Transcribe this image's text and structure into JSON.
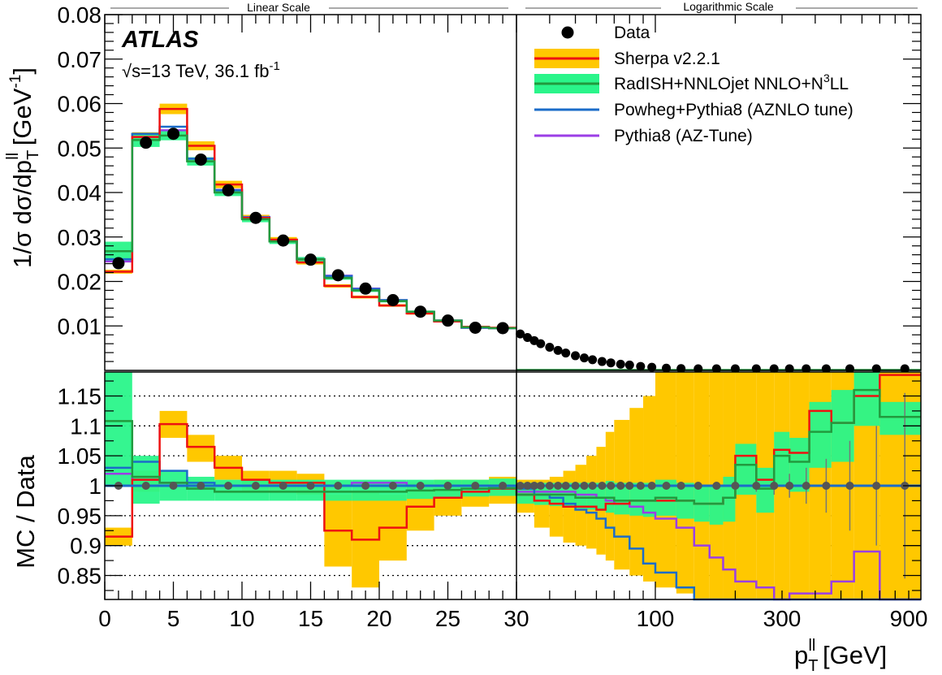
{
  "chart_data": {
    "type": "line",
    "experiment": "ATLAS",
    "energy_label": "√s=13 TeV, 36.1 fb",
    "lumi_exp": "-1",
    "scale_labels": {
      "linear": "Linear Scale",
      "log": "Logarithmic Scale"
    },
    "xlabel": {
      "base": "p",
      "sub": "T",
      "sup": "ll",
      "unit": " [GeV]"
    },
    "ylabel_main": {
      "base": "1/σ dσ/dp",
      "sub": "T",
      "sup": "ll",
      "unit": " [GeV",
      "unit_exp": "-1",
      "close": "]"
    },
    "ylabel_ratio": "MC / Data",
    "x_range": [
      0,
      1000
    ],
    "x_linear_range": [
      0,
      30
    ],
    "x_log_range": [
      30,
      1000
    ],
    "ylim_main": [
      0,
      0.08
    ],
    "ylim_ratio": [
      0.81,
      1.19
    ],
    "x_ticks_linear": [
      0,
      5,
      10,
      15,
      20,
      25,
      30
    ],
    "x_ticks_log": [
      100,
      300,
      900
    ],
    "x_ticks_log_text": {
      "100": "100",
      "300": "300",
      "900": "900"
    },
    "y_ticks_main": [
      0.01,
      0.02,
      0.03,
      0.04,
      0.05,
      0.06,
      0.07,
      0.08
    ],
    "y_ticks_main_text": [
      "0.01",
      "0.02",
      "0.03",
      "0.04",
      "0.05",
      "0.06",
      "0.07",
      "0.08"
    ],
    "y_ticks_ratio": [
      0.85,
      0.9,
      0.95,
      1.0,
      1.05,
      1.1,
      1.15
    ],
    "y_ticks_ratio_text": [
      "0.85",
      "0.9",
      "0.95",
      "1",
      "1.05",
      "1.1",
      "1.15"
    ],
    "legend": [
      {
        "name": "Data",
        "style": "marker"
      },
      {
        "name": "Sherpa v2.2.1",
        "style": "band",
        "band": "#ffc800",
        "line": "#ee1111"
      },
      {
        "name": "RadISH+NNLOjet NNLO+N",
        "sup": "3",
        "tail": "LL",
        "style": "band",
        "band": "#2af58a",
        "line": "#229a3e"
      },
      {
        "name": "Powheg+Pythia8 (AZNLO tune)",
        "style": "line",
        "line": "#1b6cc9"
      },
      {
        "name": "Pythia8 (AZ-Tune)",
        "style": "line",
        "line": "#9b3ee6"
      }
    ],
    "colors": {
      "sherpa_band": "#ffc800",
      "sherpa": "#ee1111",
      "radish_band": "#2af58a",
      "radish": "#229a3e",
      "powheg": "#1b6cc9",
      "pythia": "#9b3ee6",
      "data": "#000000",
      "ratio_data": "#555555"
    },
    "data": {
      "x": [
        1,
        3,
        5,
        7,
        9,
        11,
        13,
        15,
        17,
        19,
        21,
        23,
        25,
        27,
        29,
        31,
        33,
        35,
        37,
        40,
        43,
        46,
        50,
        54,
        58,
        63,
        68,
        74,
        80,
        88,
        97,
        110,
        125,
        145,
        170,
        200,
        240,
        280,
        320,
        370,
        440,
        540,
        680,
        870
      ],
      "y": [
        0.0241,
        0.0512,
        0.0532,
        0.0474,
        0.0405,
        0.0343,
        0.0292,
        0.0249,
        0.0214,
        0.0184,
        0.0158,
        0.0132,
        0.0112,
        0.0096,
        0.0095,
        0.0082,
        0.0074,
        0.0067,
        0.006,
        0.0052,
        0.0045,
        0.0039,
        0.0033,
        0.0028,
        0.0024,
        0.002,
        0.0017,
        0.0014,
        0.0012,
        0.0009,
        0.0007,
        0.0005,
        0.0004,
        0.0003,
        0.0002,
        0.00015,
        0.0001,
        8e-05,
        6e-05,
        5e-05,
        4e-05,
        3e-05,
        2e-05,
        1e-05
      ]
    },
    "mc_bin_edges": [
      0,
      2,
      4,
      6,
      8,
      10,
      12,
      14,
      16,
      18,
      20,
      22,
      24,
      26,
      28,
      30
    ],
    "mc_main": {
      "sherpa": [
        0.0222,
        0.0525,
        0.0588,
        0.0505,
        0.0418,
        0.0343,
        0.0294,
        0.0243,
        0.019,
        0.0165,
        0.0146,
        0.0128,
        0.011,
        0.0098,
        0.0096
      ],
      "radish": [
        0.0268,
        0.0518,
        0.0528,
        0.047,
        0.04,
        0.034,
        0.029,
        0.025,
        0.0208,
        0.018,
        0.0156,
        0.0132,
        0.0112,
        0.0097,
        0.0095
      ],
      "powheg": [
        0.025,
        0.0532,
        0.0548,
        0.0476,
        0.0405,
        0.0344,
        0.0293,
        0.025,
        0.0212,
        0.0183,
        0.0158,
        0.0132,
        0.0112,
        0.0096,
        0.0095
      ],
      "pythia": [
        0.0245,
        0.0525,
        0.054,
        0.0476,
        0.0406,
        0.0345,
        0.0293,
        0.025,
        0.0213,
        0.0184,
        0.0158,
        0.0132,
        0.0112,
        0.0096,
        0.0095
      ],
      "sherpa_band_rel": 0.02,
      "radish_band_rel": [
        0.08,
        0.03,
        0.02,
        0.02,
        0.02,
        0.02,
        0.02,
        0.02,
        0.02,
        0.02,
        0.02,
        0.02,
        0.02,
        0.02,
        0.02
      ]
    },
    "ratio_bin_edges": [
      0,
      2,
      4,
      6,
      8,
      10,
      12,
      14,
      16,
      18,
      20,
      22,
      24,
      26,
      28,
      30,
      35,
      40,
      45,
      50,
      55,
      60,
      65,
      70,
      80,
      90,
      100,
      120,
      140,
      160,
      180,
      200,
      240,
      280,
      320,
      380,
      460,
      560,
      700,
      1000
    ],
    "ratio": {
      "sherpa": [
        0.915,
        1.01,
        1.103,
        1.065,
        1.03,
        1.01,
        1.005,
        1.005,
        0.925,
        0.91,
        0.93,
        0.965,
        0.98,
        0.99,
        0.995,
        0.985,
        0.975,
        0.97,
        0.965,
        0.965,
        0.965,
        0.96,
        0.97,
        0.97,
        0.975,
        0.975,
        0.975,
        0.975,
        0.97,
        0.97,
        0.98,
        1.05,
        1.01,
        1.06,
        1.055,
        1.125,
        1.105,
        1.15,
        1.185
      ],
      "sherpa_lo": [
        0.9,
        0.99,
        1.08,
        1.04,
        1.01,
        0.99,
        0.99,
        0.985,
        0.865,
        0.83,
        0.875,
        0.925,
        0.95,
        0.965,
        0.97,
        0.955,
        0.93,
        0.915,
        0.905,
        0.9,
        0.895,
        0.885,
        0.875,
        0.86,
        0.85,
        0.84,
        0.83,
        0.82,
        0.81,
        0.81,
        0.81,
        0.81,
        0.81,
        0.81,
        0.81,
        0.81,
        0.81,
        0.81,
        0.81
      ],
      "sherpa_hi": [
        0.93,
        1.025,
        1.125,
        1.085,
        1.05,
        1.025,
        1.025,
        1.02,
        0.985,
        0.99,
        0.985,
        1.005,
        1.01,
        1.01,
        1.015,
        1.01,
        1.01,
        1.015,
        1.025,
        1.035,
        1.05,
        1.065,
        1.09,
        1.11,
        1.13,
        1.15,
        1.19,
        1.19,
        1.19,
        1.19,
        1.19,
        1.19,
        1.19,
        1.19,
        1.19,
        1.19,
        1.19,
        1.19,
        1.19
      ],
      "radish": [
        1.108,
        1.015,
        1.005,
        0.995,
        0.99,
        0.99,
        0.99,
        0.99,
        0.99,
        0.99,
        0.99,
        0.992,
        0.993,
        0.995,
        0.996,
        0.985,
        0.985,
        0.985,
        0.985,
        0.98,
        0.98,
        0.98,
        0.98,
        0.975,
        0.975,
        0.975,
        0.98,
        0.975,
        0.97,
        0.97,
        0.98,
        1.035,
        0.995,
        1.05,
        1.04,
        1.09,
        1.105,
        1.16,
        1.115
      ],
      "radish_lo": [
        1.0,
        0.97,
        0.975,
        0.975,
        0.975,
        0.975,
        0.975,
        0.975,
        0.975,
        0.975,
        0.975,
        0.978,
        0.98,
        0.982,
        0.983,
        0.97,
        0.968,
        0.966,
        0.964,
        0.962,
        0.96,
        0.958,
        0.955,
        0.952,
        0.95,
        0.948,
        0.95,
        0.945,
        0.94,
        0.935,
        0.94,
        0.985,
        0.955,
        1.0,
        0.99,
        1.03,
        1.04,
        1.1,
        1.085
      ],
      "radish_hi": [
        1.19,
        1.05,
        1.025,
        1.015,
        1.01,
        1.01,
        1.01,
        1.01,
        1.01,
        1.01,
        1.01,
        1.01,
        1.01,
        1.01,
        1.012,
        1.005,
        1.005,
        1.005,
        1.005,
        1.005,
        1.005,
        1.005,
        1.008,
        1.005,
        1.005,
        1.005,
        1.01,
        1.005,
        1.0,
        1.0,
        1.015,
        1.07,
        1.03,
        1.09,
        1.08,
        1.14,
        1.16,
        1.19,
        1.14
      ],
      "powheg": [
        1.03,
        1.04,
        1.025,
        1.005,
        1.0,
        1.0,
        1.0,
        1.0,
        1.0,
        1.0,
        1.0,
        1.0,
        1.0,
        1.0,
        1.0,
        0.995,
        0.985,
        0.98,
        0.97,
        0.96,
        0.955,
        0.945,
        0.93,
        0.915,
        0.895,
        0.87,
        0.855,
        0.83,
        0.81,
        0.81,
        0.81,
        0.81,
        0.81,
        0.81,
        0.81,
        0.81,
        0.81,
        0.81,
        0.81
      ],
      "pythia": [
        1.02,
        1.01,
        1.005,
        1.0,
        1.0,
        1.0,
        1.0,
        1.0,
        1.0,
        1.005,
        1.005,
        1.0,
        1.0,
        1.0,
        1.0,
        0.99,
        0.99,
        0.99,
        0.99,
        0.985,
        0.985,
        0.98,
        0.975,
        0.97,
        0.965,
        0.955,
        0.945,
        0.93,
        0.9,
        0.88,
        0.86,
        0.84,
        0.83,
        0.81,
        0.82,
        0.82,
        0.84,
        0.89,
        0.81
      ],
      "data_x": [
        1,
        3,
        5,
        7,
        9,
        11,
        13,
        15,
        17,
        19,
        21,
        23,
        25,
        27,
        29,
        31,
        33,
        35,
        37,
        40,
        43,
        46,
        50,
        54,
        58,
        63,
        68,
        74,
        80,
        88,
        97,
        110,
        125,
        145,
        170,
        200,
        240,
        280,
        320,
        370,
        440,
        540,
        680,
        870
      ],
      "data_err": [
        0.006,
        0.003,
        0.003,
        0.003,
        0.003,
        0.003,
        0.003,
        0.003,
        0.003,
        0.003,
        0.003,
        0.003,
        0.003,
        0.003,
        0.003,
        0.003,
        0.003,
        0.003,
        0.003,
        0.003,
        0.003,
        0.003,
        0.003,
        0.003,
        0.003,
        0.003,
        0.003,
        0.003,
        0.003,
        0.003,
        0.003,
        0.004,
        0.004,
        0.005,
        0.006,
        0.008,
        0.01,
        0.015,
        0.02,
        0.03,
        0.045,
        0.075,
        0.1,
        0.155
      ]
    }
  }
}
